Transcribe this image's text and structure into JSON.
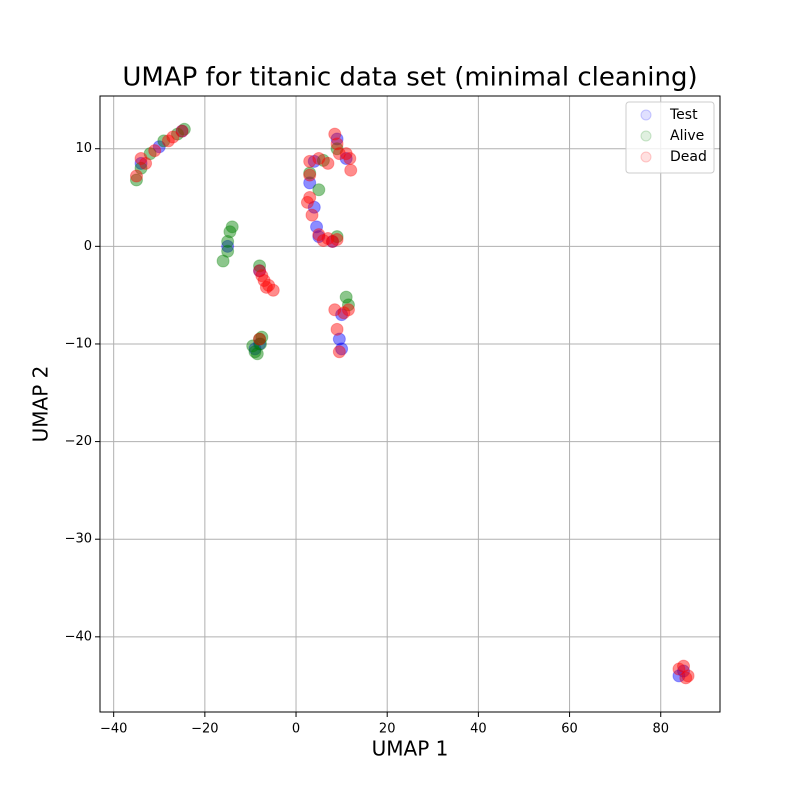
{
  "chart_data": {
    "type": "scatter",
    "title": "UMAP for titanic data set (minimal cleaning)",
    "x_label": "UMAP 1",
    "y_label": "UMAP 2",
    "xlim": [
      -43,
      93
    ],
    "ylim": [
      -47.7,
      15.4
    ],
    "xticks": [
      {
        "value": -40,
        "label": "−40"
      },
      {
        "value": -20,
        "label": "−20"
      },
      0,
      20,
      40,
      60,
      80
    ],
    "yticks": [
      {
        "value": -40,
        "label": "−40"
      },
      {
        "value": -30,
        "label": "−30"
      },
      {
        "value": -20,
        "label": "−20"
      },
      {
        "value": -10,
        "label": "−10"
      },
      0,
      10
    ],
    "grid": true,
    "legend": "upper right",
    "series": [
      {
        "name": "Test",
        "color": "#0000ff",
        "x": [
          -34,
          -30,
          -25,
          -15,
          -8,
          -9,
          -8,
          3,
          4,
          5,
          4.5,
          9,
          11,
          8,
          10,
          9.5,
          10,
          84,
          85,
          4
        ],
        "y": [
          8.5,
          10.2,
          11.8,
          0,
          -2.5,
          -10.5,
          -10,
          6.5,
          4,
          1,
          2,
          11,
          9,
          0.5,
          -7,
          -9.5,
          -10.5,
          -44,
          -43.5,
          8.7
        ]
      },
      {
        "name": "Alive",
        "color": "#008000",
        "x": [
          -35,
          -34,
          -32,
          -29,
          -26,
          -24.5,
          -16,
          -15,
          -14.5,
          -14,
          -15,
          -9,
          -8,
          -7.5,
          -9.5,
          -8.5,
          -7.8,
          -8,
          5,
          6,
          11,
          11.5,
          9,
          3,
          9
        ],
        "y": [
          6.8,
          8,
          9.5,
          10.8,
          11.5,
          12,
          -1.5,
          0.5,
          1.5,
          2,
          -0.5,
          -10.8,
          -9.5,
          -9.3,
          -10.2,
          -11,
          -10,
          -2,
          5.8,
          8.8,
          -5.2,
          -6,
          1,
          7.5,
          10
        ]
      },
      {
        "name": "Dead",
        "color": "#ff0000",
        "x": [
          -35,
          -34,
          -33,
          -31,
          -28,
          -27,
          -25,
          -8,
          -7.5,
          -7,
          -6,
          -5,
          -6.5,
          -8,
          3,
          3,
          2.5,
          3.5,
          5,
          7,
          8.5,
          9,
          9.5,
          11,
          12,
          11.8,
          5,
          6,
          7,
          8,
          9,
          8.5,
          9,
          9.5,
          10.5,
          11.5,
          84,
          85,
          86,
          85.5,
          3
        ],
        "y": [
          7.2,
          9,
          8.5,
          9.8,
          10.8,
          11.2,
          11.8,
          -2.5,
          -3,
          -3.5,
          -4,
          -4.5,
          -4.2,
          -9.5,
          8.7,
          5,
          4.5,
          3.2,
          9,
          8.5,
          11.5,
          10.5,
          9.5,
          9.5,
          7.8,
          9,
          1.2,
          0.6,
          0.8,
          0.5,
          0.7,
          -6.5,
          -8.5,
          -10.8,
          -6.8,
          -6.5,
          -43.3,
          -43,
          -44,
          -44.2,
          7.3
        ]
      }
    ]
  }
}
